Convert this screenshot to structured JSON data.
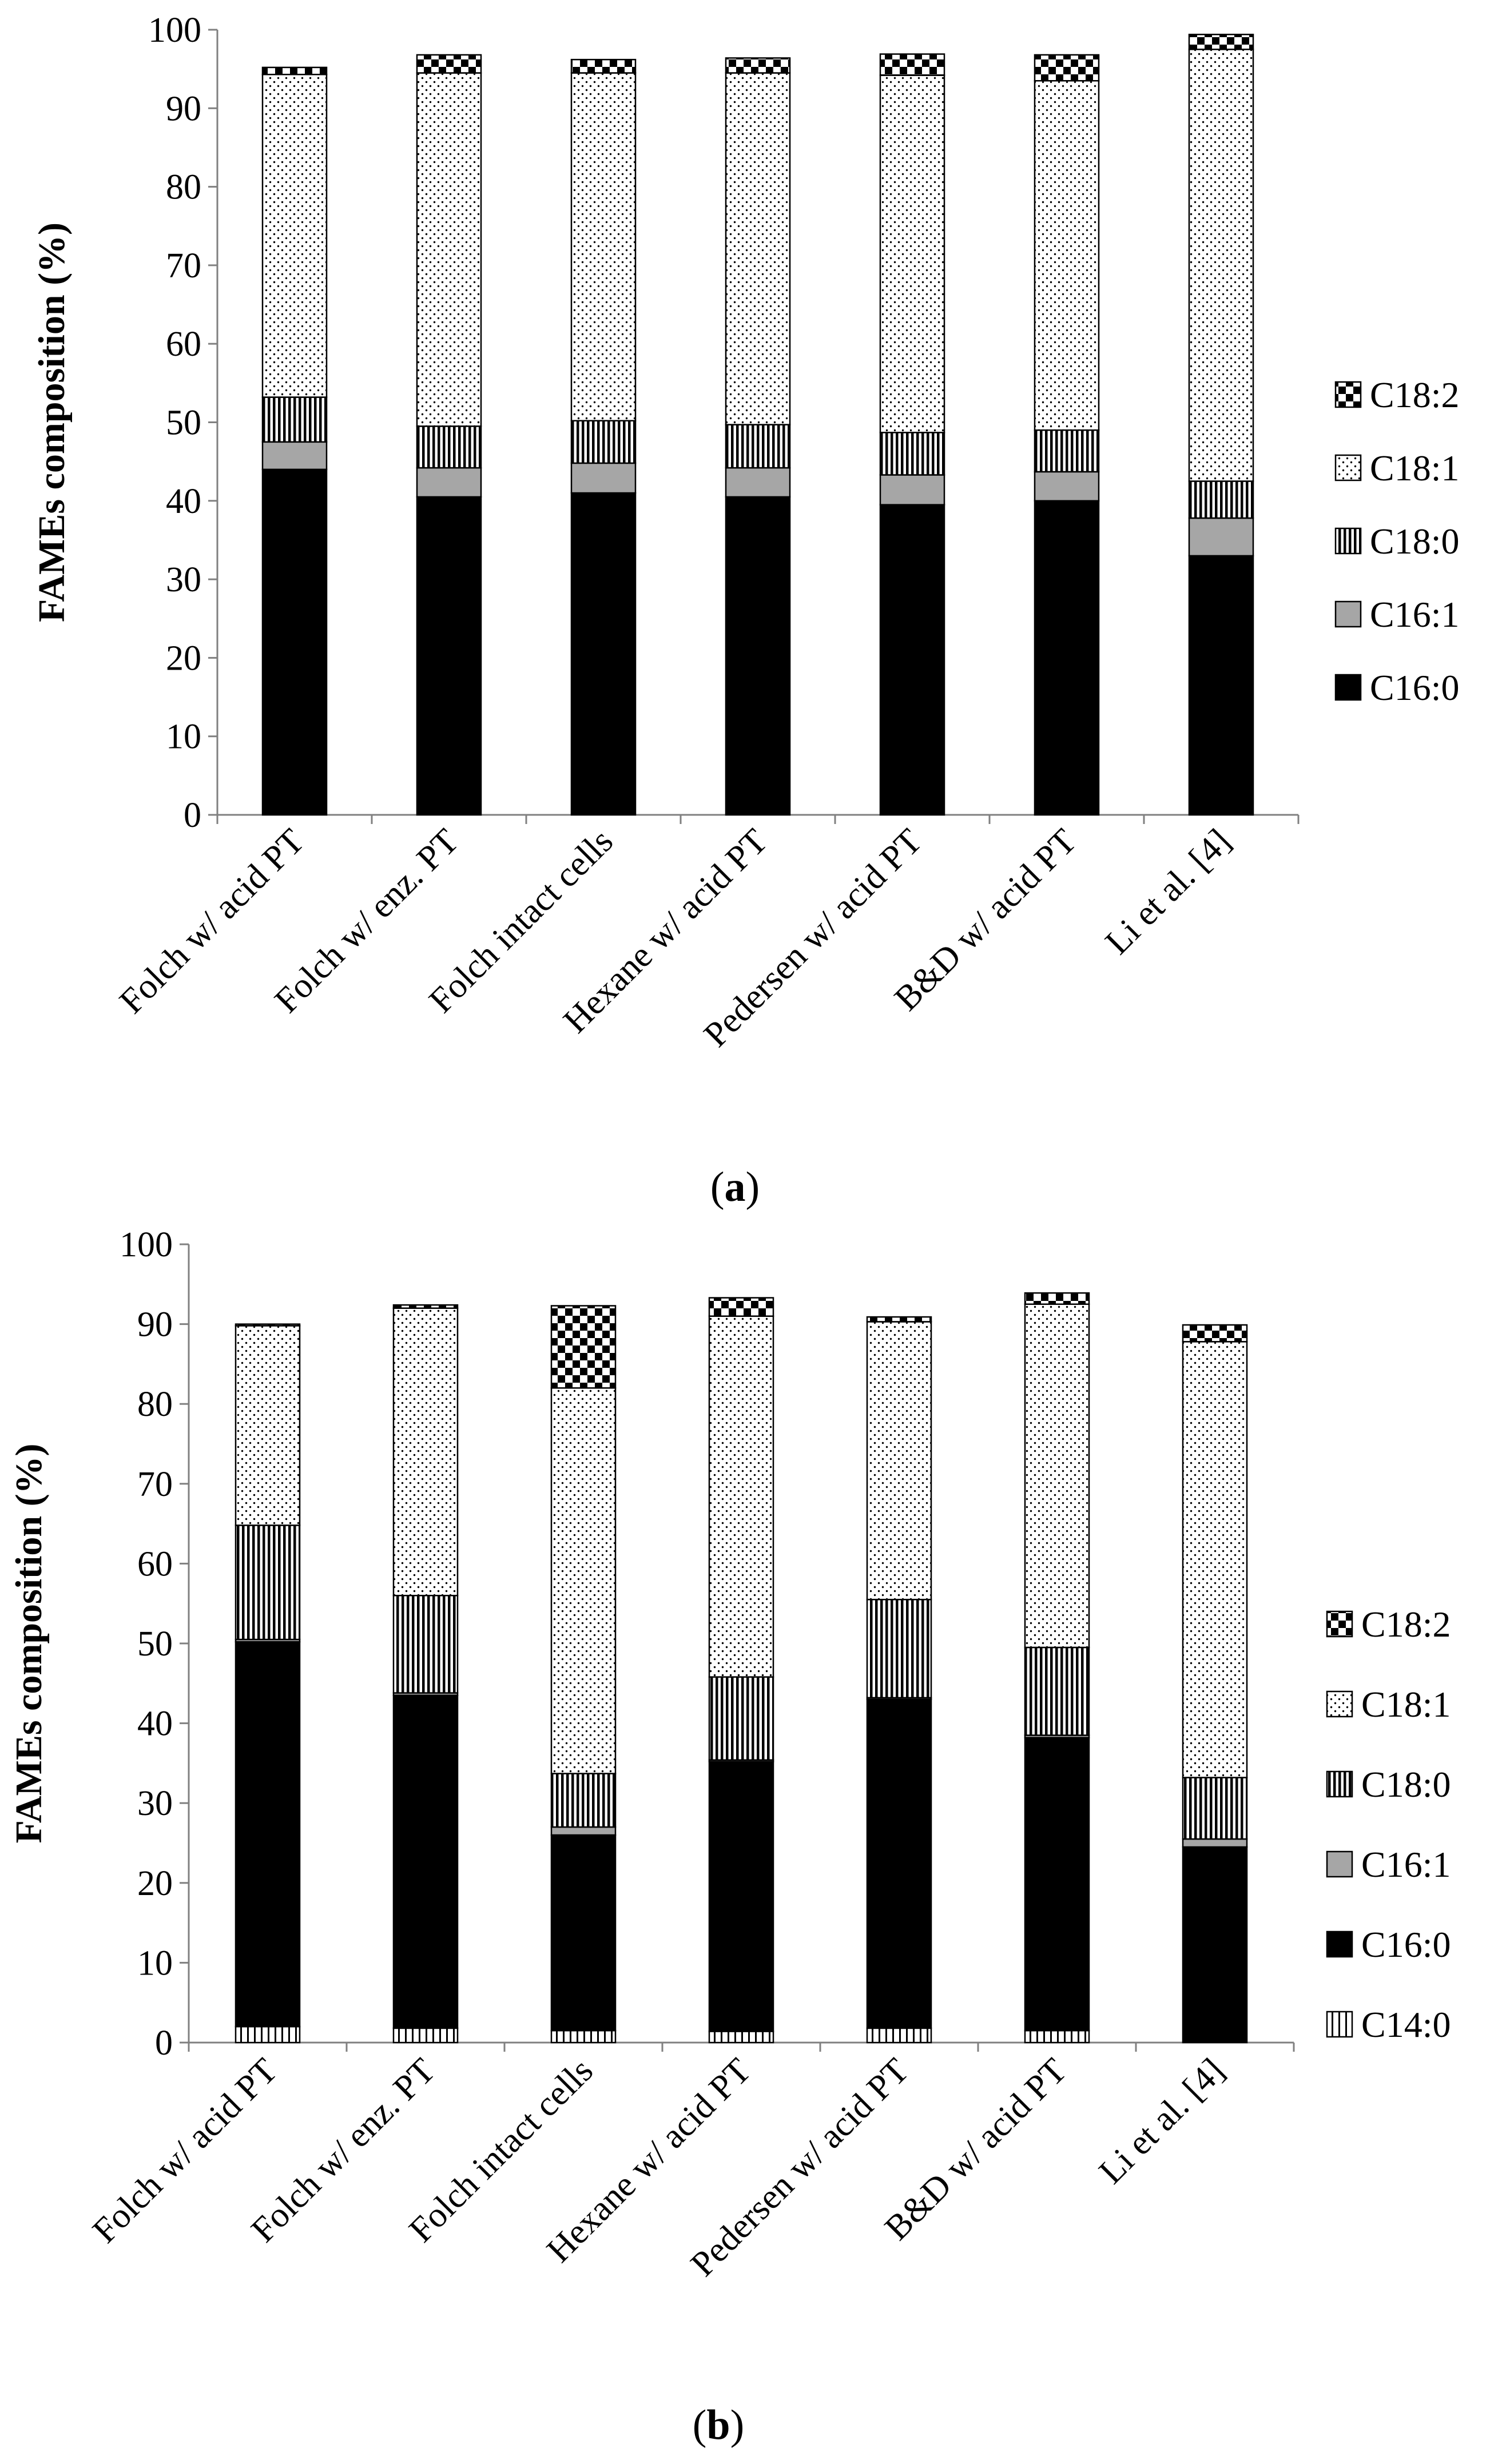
{
  "chart_data": [
    {
      "type": "bar",
      "stacked": true,
      "panel_label": "a",
      "title": "",
      "ylabel": "FAMEs composition (%)",
      "xlabel": "",
      "ylim": [
        0,
        100
      ],
      "yticks": [
        0,
        10,
        20,
        30,
        40,
        50,
        60,
        70,
        80,
        90,
        100
      ],
      "categories": [
        "Folch w/ acid PT",
        "Folch w/ enz. PT",
        "Folch intact cells",
        "Hexane w/ acid PT",
        "Pedersen w/ acid PT",
        "B&D w/ acid PT",
        "Li et al. [4]"
      ],
      "legend_position": "right",
      "series": [
        {
          "name": "C16:0",
          "pattern": "solid-black",
          "values": [
            44.0,
            40.5,
            41.0,
            40.5,
            39.5,
            40.0,
            33.0
          ]
        },
        {
          "name": "C16:1",
          "pattern": "solid-gray",
          "values": [
            3.5,
            3.7,
            3.8,
            3.7,
            3.8,
            3.7,
            4.8
          ]
        },
        {
          "name": "C18:0",
          "pattern": "vertical-stripes",
          "values": [
            5.7,
            5.3,
            5.4,
            5.5,
            5.4,
            5.3,
            4.7
          ]
        },
        {
          "name": "C18:1",
          "pattern": "dots",
          "values": [
            41.1,
            45.0,
            44.3,
            44.8,
            45.5,
            44.5,
            55.0
          ]
        },
        {
          "name": "C18:2",
          "pattern": "checker",
          "values": [
            0.9,
            2.3,
            1.7,
            1.9,
            2.7,
            3.3,
            1.9
          ]
        }
      ]
    },
    {
      "type": "bar",
      "stacked": true,
      "panel_label": "b",
      "title": "",
      "ylabel": "FAMEs composition (%)",
      "xlabel": "",
      "ylim": [
        0,
        100
      ],
      "yticks": [
        0,
        10,
        20,
        30,
        40,
        50,
        60,
        70,
        80,
        90,
        100
      ],
      "categories": [
        "Folch w/ acid PT",
        "Folch w/ enz. PT",
        "Folch intact cells",
        "Hexane w/ acid PT",
        "Pedersen w/ acid PT",
        "B&D w/ acid PT",
        "Li et al. [4]"
      ],
      "legend_position": "right",
      "series": [
        {
          "name": "C14:0",
          "pattern": "vertical-stripes-white",
          "values": [
            2.0,
            1.8,
            1.5,
            1.4,
            1.8,
            1.5,
            0.0
          ]
        },
        {
          "name": "C16:0",
          "pattern": "solid-black",
          "values": [
            48.2,
            41.7,
            24.5,
            33.8,
            41.2,
            36.7,
            24.5
          ]
        },
        {
          "name": "C16:1",
          "pattern": "solid-gray",
          "values": [
            0.3,
            0.3,
            1.0,
            0.2,
            0.2,
            0.3,
            1.0
          ]
        },
        {
          "name": "C18:0",
          "pattern": "vertical-stripes",
          "values": [
            14.3,
            12.2,
            6.7,
            10.4,
            12.3,
            11.0,
            7.7
          ]
        },
        {
          "name": "C18:1",
          "pattern": "dots",
          "values": [
            25.0,
            36.0,
            48.3,
            45.2,
            34.8,
            43.0,
            54.6
          ]
        },
        {
          "name": "C18:2",
          "pattern": "checker",
          "values": [
            0.2,
            0.4,
            10.3,
            2.3,
            0.6,
            1.4,
            2.1
          ]
        }
      ]
    }
  ]
}
